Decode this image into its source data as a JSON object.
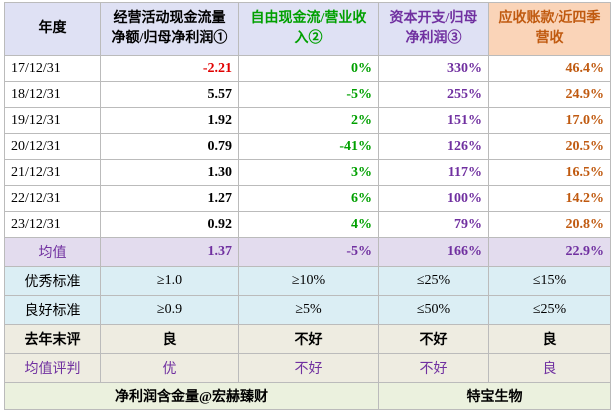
{
  "header": [
    "年度",
    "经营活动现金流量净额/归母净利润①",
    "自由现金流/营业收入②",
    "资本开支/归母净利润③",
    "应收账款/近四季营收"
  ],
  "rows": [
    [
      "17/12/31",
      "-2.21",
      "0%",
      "330%",
      "46.4%"
    ],
    [
      "18/12/31",
      "5.57",
      "-5%",
      "255%",
      "24.9%"
    ],
    [
      "19/12/31",
      "1.92",
      "2%",
      "151%",
      "17.0%"
    ],
    [
      "20/12/31",
      "0.79",
      "-41%",
      "126%",
      "20.5%"
    ],
    [
      "21/12/31",
      "1.30",
      "3%",
      "117%",
      "16.5%"
    ],
    [
      "22/12/31",
      "1.27",
      "6%",
      "100%",
      "14.2%"
    ],
    [
      "23/12/31",
      "0.92",
      "4%",
      "79%",
      "20.8%"
    ]
  ],
  "average": [
    "均值",
    "1.37",
    "-5%",
    "166%",
    "22.9%"
  ],
  "standards": [
    [
      "优秀标准",
      "≥1.0",
      "≥10%",
      "≤25%",
      "≤15%"
    ],
    [
      "良好标准",
      "≥0.9",
      "≥5%",
      "≤50%",
      "≤25%"
    ]
  ],
  "evaluations": [
    [
      "去年末评",
      "良",
      "不好",
      "不好",
      "良"
    ],
    [
      "均值评判",
      "优",
      "不好",
      "不好",
      "良"
    ]
  ],
  "footer": [
    "净利润含金量@宏赫臻财",
    "特宝生物"
  ]
}
